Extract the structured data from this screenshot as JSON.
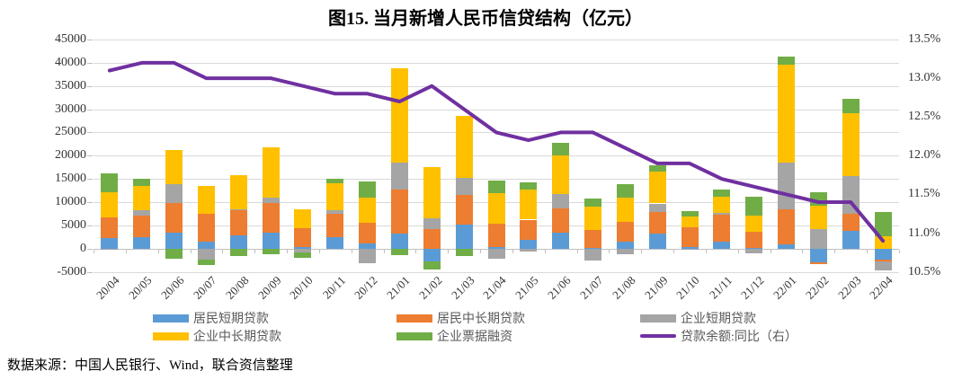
{
  "title": "图15. 当月新增人民币信贷结构（亿元）",
  "footer": "数据来源：中国人民银行、Wind，联合资信整理",
  "chart_data": {
    "type": "bar",
    "subtype": "stacked-column-with-line",
    "title": "图15. 当月新增人民币信贷结构（亿元）",
    "grid": true,
    "legend_position": "bottom",
    "categories": [
      "20/04",
      "20/05",
      "20/06",
      "20/07",
      "20/08",
      "20/09",
      "20/10",
      "20/11",
      "20/12",
      "21/01",
      "21/02",
      "21/03",
      "21/04",
      "21/05",
      "21/06",
      "21/07",
      "21/08",
      "21/09",
      "21/10",
      "21/11",
      "21/12",
      "22/01",
      "22/02",
      "22/03",
      "22/04"
    ],
    "series": [
      {
        "name": "居民短期贷款",
        "color": "#5B9BD5",
        "values": [
          2280,
          2381,
          3400,
          1510,
          2844,
          3394,
          272,
          2486,
          1142,
          3278,
          -2691,
          5242,
          365,
          1806,
          3500,
          85,
          1496,
          3219,
          426,
          1517,
          157,
          1006,
          -2911,
          3848,
          -2411
        ]
      },
      {
        "name": "居民中长期贷款",
        "color": "#ED7D31",
        "values": [
          4389,
          4662,
          6349,
          6067,
          5571,
          6362,
          4059,
          5049,
          4392,
          9448,
          4113,
          6239,
          4918,
          4426,
          5156,
          3974,
          4259,
          4667,
          4221,
          5821,
          3558,
          7424,
          -459,
          3735,
          -313
        ]
      },
      {
        "name": "企业短期贷款",
        "color": "#A5A5A5",
        "values": [
          -62,
          1211,
          4051,
          -2421,
          47,
          1274,
          -837,
          734,
          -3097,
          5755,
          2497,
          3748,
          -2147,
          -644,
          3091,
          -2577,
          -1149,
          1826,
          -288,
          410,
          -1054,
          10100,
          4111,
          8089,
          -1948
        ]
      },
      {
        "name": "企业中长期贷款",
        "color": "#FFC000",
        "values": [
          5547,
          5305,
          7348,
          5968,
          7252,
          10680,
          4113,
          5887,
          5500,
          20400,
          11000,
          13300,
          6605,
          6528,
          8367,
          4937,
          5215,
          6948,
          2190,
          3417,
          3393,
          21000,
          5052,
          13448,
          2652
        ]
      },
      {
        "name": "企业票据融资",
        "color": "#70AD47",
        "values": [
          3910,
          1432,
          -2104,
          -1021,
          -1676,
          -1276,
          -1124,
          804,
          3341,
          -1405,
          -1855,
          -1525,
          2711,
          1538,
          2747,
          1771,
          2813,
          1353,
          1160,
          1605,
          4087,
          1788,
          3052,
          3187,
          5148
        ]
      }
    ],
    "line_series": {
      "name": "贷款余额:同比（右）",
      "color": "#7030A0",
      "axis": "right",
      "values": [
        13.1,
        13.2,
        13.2,
        13.0,
        13.0,
        13.0,
        12.9,
        12.8,
        12.8,
        12.7,
        12.9,
        12.6,
        12.3,
        12.2,
        12.3,
        12.3,
        12.1,
        11.9,
        11.9,
        11.7,
        11.6,
        11.5,
        11.4,
        11.4,
        10.9
      ]
    },
    "left_axis": {
      "min": -5000,
      "max": 45000,
      "step": 5000,
      "ticks": [
        "45000",
        "40000",
        "35000",
        "30000",
        "25000",
        "20000",
        "15000",
        "10000",
        "5000",
        "0",
        "-5000"
      ]
    },
    "right_axis": {
      "min": 10.5,
      "max": 13.5,
      "step": 0.5,
      "ticks": [
        "13.5%",
        "13.0%",
        "12.5%",
        "12.0%",
        "11.5%",
        "11.0%",
        "10.5%"
      ]
    }
  },
  "legend": {
    "items": [
      {
        "label": "居民短期贷款",
        "color": "#5B9BD5",
        "marker": "bar"
      },
      {
        "label": "居民中长期贷款",
        "color": "#ED7D31",
        "marker": "bar"
      },
      {
        "label": "企业短期贷款",
        "color": "#A5A5A5",
        "marker": "bar"
      },
      {
        "label": "企业中长期贷款",
        "color": "#FFC000",
        "marker": "bar"
      },
      {
        "label": "企业票据融资",
        "color": "#70AD47",
        "marker": "bar"
      },
      {
        "label": "贷款余额:同比（右）",
        "color": "#7030A0",
        "marker": "line"
      }
    ]
  }
}
